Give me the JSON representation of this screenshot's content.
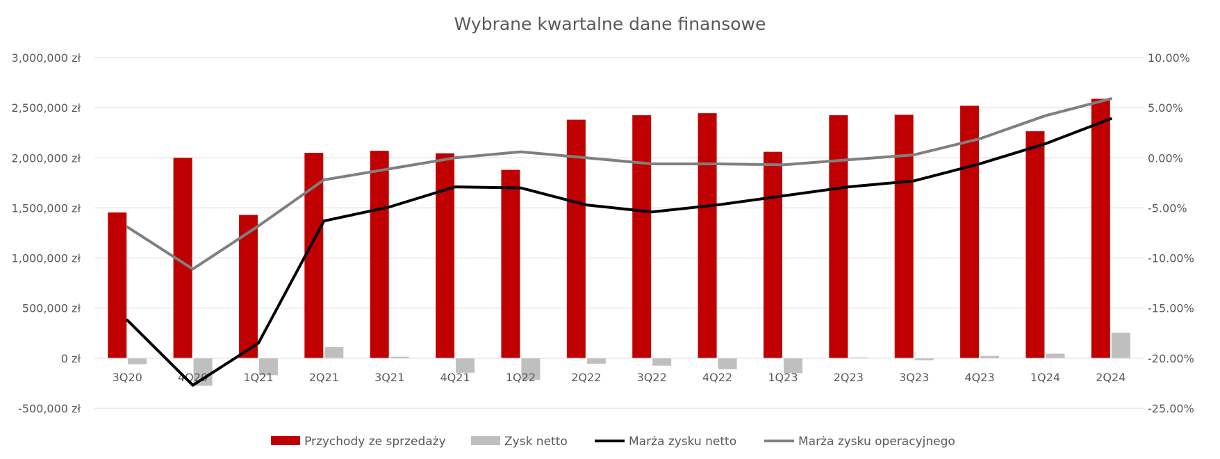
{
  "chart_data": {
    "type": "bar",
    "title": "Wybrane kwartalne dane finansowe",
    "xlabel": "",
    "ylabel": "",
    "categories": [
      "3Q20",
      "4Q20",
      "1Q21",
      "2Q21",
      "3Q21",
      "4Q21",
      "1Q22",
      "2Q22",
      "3Q22",
      "4Q22",
      "1Q23",
      "2Q23",
      "3Q23",
      "4Q23",
      "1Q24",
      "2Q24"
    ],
    "left_axis": {
      "ylim": [
        -500000,
        3000000
      ],
      "ticks": [
        -500000,
        0,
        500000,
        1000000,
        1500000,
        2000000,
        2500000,
        3000000
      ],
      "tick_labels": [
        "-500,000 zł",
        "0 zł",
        "500,000 zł",
        "1,000,000 zł",
        "1,500,000 zł",
        "2,000,000 zł",
        "2,500,000 zł",
        "3,000,000 zł"
      ]
    },
    "right_axis": {
      "ylim": [
        -25,
        10
      ],
      "ticks": [
        -25,
        -20,
        -15,
        -10,
        -5,
        0,
        5,
        10
      ],
      "tick_labels": [
        "-25.00%",
        "-20.00%",
        "-15.00%",
        "-10.00%",
        "-5.00%",
        "0.00%",
        "5.00%",
        "10.00%"
      ]
    },
    "grid": true,
    "legend": "bottom",
    "series": [
      {
        "name": "Przychody ze sprzedaży",
        "type": "bar",
        "axis": "left",
        "color": "#c00000",
        "values": [
          1455000,
          2000000,
          1430000,
          2050000,
          2070000,
          2045000,
          1880000,
          2380000,
          2425000,
          2445000,
          2060000,
          2425000,
          2430000,
          2520000,
          2265000,
          2590000
        ]
      },
      {
        "name": "Zysk netto",
        "type": "bar",
        "axis": "left",
        "color": "#bfbfbf",
        "values": [
          -60000,
          -275000,
          -170000,
          110000,
          15000,
          -145000,
          -215000,
          -55000,
          -75000,
          -110000,
          -150000,
          8000,
          -20000,
          22000,
          45000,
          255000
        ]
      },
      {
        "name": "Marża zysku netto",
        "type": "line",
        "axis": "right",
        "color": "#000000",
        "values": [
          -16.2,
          -22.7,
          -18.5,
          -6.3,
          -4.9,
          -2.9,
          -3.0,
          -4.7,
          -5.4,
          -4.7,
          -3.8,
          -2.9,
          -2.3,
          -0.6,
          1.4,
          3.9
        ]
      },
      {
        "name": "Marża zysku operacyjnego",
        "type": "line",
        "axis": "right",
        "color": "#7f7f7f",
        "values": [
          -6.9,
          -11.1,
          -6.8,
          -2.2,
          -1.1,
          0.0,
          0.6,
          0.0,
          -0.6,
          -0.6,
          -0.7,
          -0.2,
          0.3,
          1.9,
          4.2,
          5.9
        ]
      }
    ]
  }
}
